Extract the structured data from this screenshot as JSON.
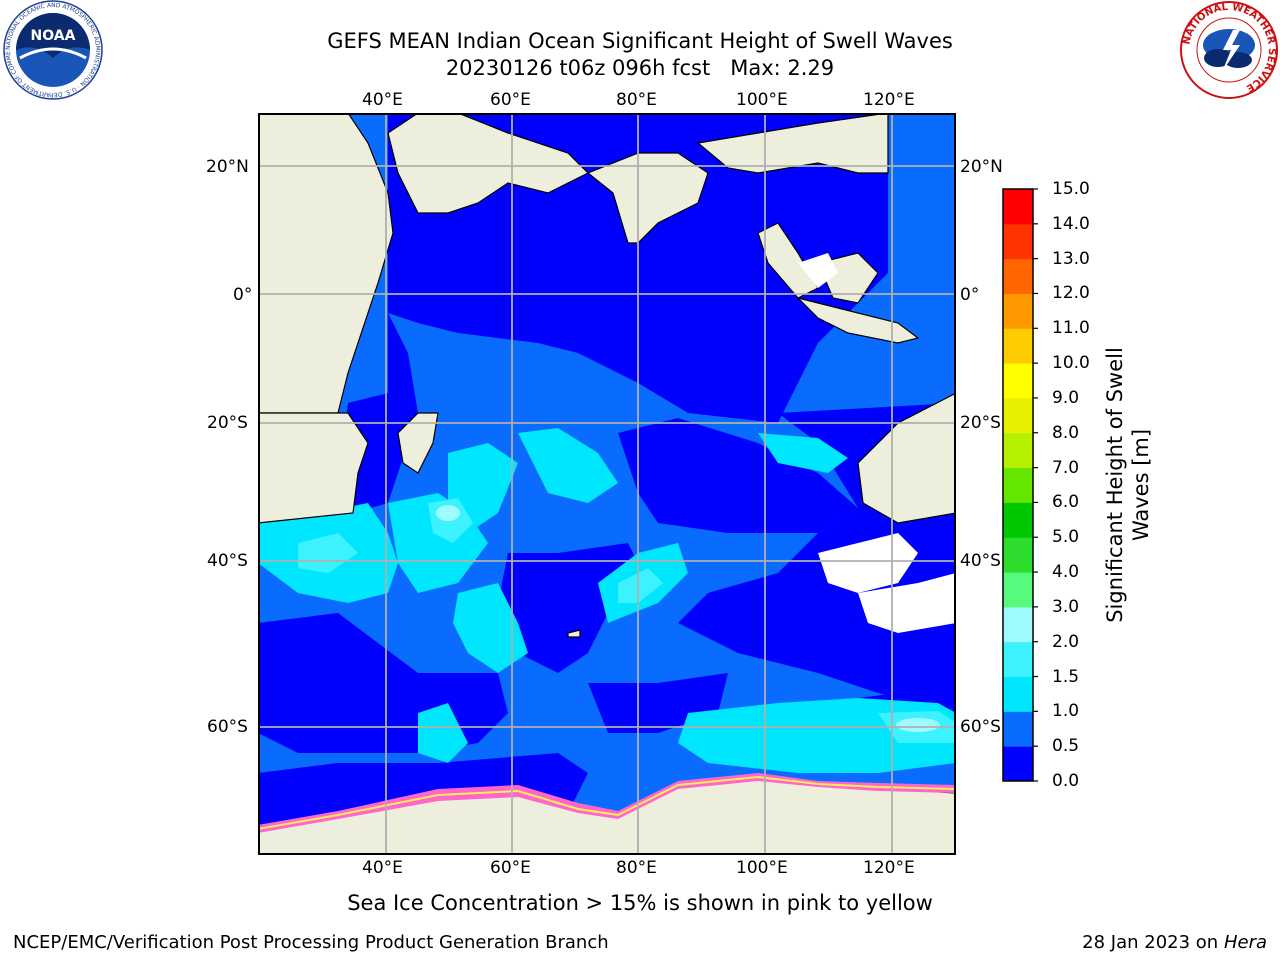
{
  "title": {
    "line1": "GEFS MEAN Indian Ocean Significant Height of Swell Waves",
    "line2": "20230126 t06z 096h fcst   Max: 2.29"
  },
  "map": {
    "lon_ticks": [
      "40°E",
      "60°E",
      "80°E",
      "100°E",
      "120°E"
    ],
    "lat_ticks": [
      "20°N",
      "0°",
      "20°S",
      "40°S",
      "60°S"
    ],
    "land_color": "#eeeedd",
    "grid_color": "#b0b0b0"
  },
  "colorbar": {
    "label_line1": "Significant Height of Swell",
    "label_line2": "Waves [m]",
    "ticks": [
      "0.0",
      "0.5",
      "1.0",
      "1.5",
      "2.0",
      "3.0",
      "4.0",
      "5.0",
      "6.0",
      "7.0",
      "8.0",
      "9.0",
      "10.0",
      "11.0",
      "12.0",
      "13.0",
      "14.0",
      "15.0"
    ],
    "colors": [
      "#0000ff",
      "#0a6cff",
      "#00e6ff",
      "#3cf2ff",
      "#a0fbff",
      "#56fa7c",
      "#2ddc2d",
      "#00c800",
      "#64e600",
      "#b4f000",
      "#e6f000",
      "#ffff00",
      "#ffcc00",
      "#ff9900",
      "#ff6600",
      "#ff3300",
      "#ff0000"
    ]
  },
  "note": "Sea Ice Concentration > 15% is shown in pink to yellow",
  "footer": {
    "left": "NCEP/EMC/Verification Post Processing Product Generation Branch",
    "right_date": "28 Jan 2023 on ",
    "right_host": "Hera"
  },
  "logos": {
    "noaa": "NOAA",
    "noaa_ring": "NATIONAL OCEANIC AND ATMOSPHERIC ADMINISTRATION · U.S. DEPARTMENT OF COMMERCE",
    "nws_ring": "NATIONAL WEATHER SERVICE"
  }
}
